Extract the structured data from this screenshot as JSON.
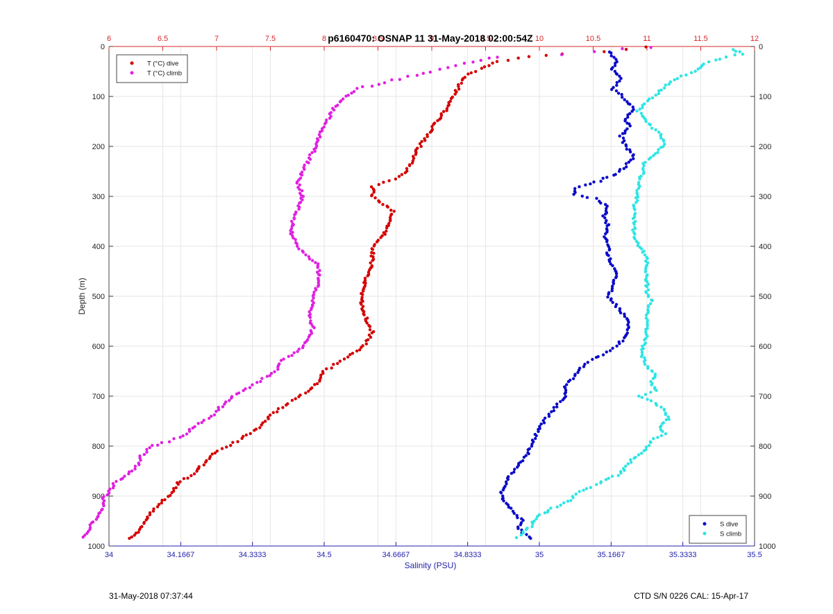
{
  "chart_data": {
    "type": "scatter",
    "title": "p6160470: OSNAP 11 31-May-2018 02:00:54Z",
    "ylabel": "Depth (m)",
    "xlabel_bottom": "Salinity (PSU)",
    "xlabel_top": "",
    "ylim": [
      1000,
      0
    ],
    "ylim_note": "depth increases downward",
    "y_ticks": [
      "0",
      "100",
      "200",
      "300",
      "400",
      "500",
      "600",
      "700",
      "800",
      "900",
      "1000"
    ],
    "x_top_range": [
      6,
      12
    ],
    "x_top_ticks": [
      "6",
      "6.5",
      "7",
      "7.5",
      "8",
      "8.5",
      "9",
      "9.5",
      "10",
      "10.5",
      "11",
      "11.5",
      "12"
    ],
    "x_bottom_range": [
      34,
      35.5
    ],
    "x_bottom_ticks": [
      "34",
      "34.1667",
      "34.3333",
      "34.5",
      "34.6667",
      "34.8333",
      "35",
      "35.1667",
      "35.3333",
      "35.5"
    ],
    "grid": true,
    "legend_temperature": {
      "placement": "top-left"
    },
    "legend_salinity": {
      "placement": "bottom-right"
    },
    "colors": {
      "top_axis": "#d62728",
      "bottom_axis": "#2222aa",
      "grid": "#e6e6e6"
    },
    "series": [
      {
        "name": "T (°C) dive",
        "axis": "top",
        "color": "#d40000",
        "points": [
          [
            11.0,
            2
          ],
          [
            10.6,
            10
          ],
          [
            10.2,
            14
          ],
          [
            9.9,
            20
          ],
          [
            9.6,
            30
          ],
          [
            9.45,
            45
          ],
          [
            9.3,
            60
          ],
          [
            9.25,
            80
          ],
          [
            9.2,
            100
          ],
          [
            9.15,
            120
          ],
          [
            9.05,
            150
          ],
          [
            8.95,
            180
          ],
          [
            8.85,
            210
          ],
          [
            8.8,
            240
          ],
          [
            8.7,
            260
          ],
          [
            8.45,
            280
          ],
          [
            8.45,
            300
          ],
          [
            8.65,
            330
          ],
          [
            8.6,
            350
          ],
          [
            8.55,
            380
          ],
          [
            8.45,
            400
          ],
          [
            8.45,
            430
          ],
          [
            8.4,
            460
          ],
          [
            8.35,
            490
          ],
          [
            8.35,
            520
          ],
          [
            8.4,
            550
          ],
          [
            8.45,
            570
          ],
          [
            8.4,
            590
          ],
          [
            8.3,
            610
          ],
          [
            8.15,
            630
          ],
          [
            8.0,
            650
          ],
          [
            7.95,
            670
          ],
          [
            7.85,
            690
          ],
          [
            7.7,
            710
          ],
          [
            7.55,
            730
          ],
          [
            7.45,
            750
          ],
          [
            7.35,
            770
          ],
          [
            7.2,
            790
          ],
          [
            7.0,
            810
          ],
          [
            6.85,
            840
          ],
          [
            6.8,
            855
          ],
          [
            6.65,
            870
          ],
          [
            6.6,
            890
          ],
          [
            6.5,
            910
          ],
          [
            6.4,
            930
          ],
          [
            6.35,
            945
          ],
          [
            6.3,
            960
          ],
          [
            6.25,
            975
          ],
          [
            6.2,
            985
          ]
        ]
      },
      {
        "name": "T (°C) climb",
        "axis": "top",
        "color": "#e020e0",
        "points": [
          [
            11.05,
            2
          ],
          [
            10.5,
            10
          ],
          [
            10.2,
            15
          ],
          [
            9.6,
            20
          ],
          [
            9.3,
            35
          ],
          [
            9.0,
            50
          ],
          [
            8.7,
            65
          ],
          [
            8.5,
            75
          ],
          [
            8.3,
            85
          ],
          [
            8.2,
            100
          ],
          [
            8.1,
            120
          ],
          [
            8.05,
            140
          ],
          [
            8.0,
            160
          ],
          [
            7.95,
            180
          ],
          [
            7.9,
            210
          ],
          [
            7.85,
            230
          ],
          [
            7.8,
            250
          ],
          [
            7.75,
            270
          ],
          [
            7.8,
            300
          ],
          [
            7.75,
            330
          ],
          [
            7.7,
            350
          ],
          [
            7.7,
            380
          ],
          [
            7.75,
            400
          ],
          [
            7.85,
            420
          ],
          [
            7.95,
            440
          ],
          [
            7.95,
            470
          ],
          [
            7.9,
            500
          ],
          [
            7.9,
            520
          ],
          [
            7.85,
            540
          ],
          [
            7.9,
            560
          ],
          [
            7.85,
            590
          ],
          [
            7.75,
            610
          ],
          [
            7.6,
            630
          ],
          [
            7.55,
            650
          ],
          [
            7.4,
            670
          ],
          [
            7.25,
            690
          ],
          [
            7.15,
            700
          ],
          [
            7.05,
            720
          ],
          [
            6.95,
            740
          ],
          [
            6.8,
            760
          ],
          [
            6.7,
            780
          ],
          [
            6.55,
            790
          ],
          [
            6.4,
            800
          ],
          [
            6.3,
            820
          ],
          [
            6.25,
            845
          ],
          [
            6.15,
            860
          ],
          [
            6.05,
            875
          ],
          [
            6.0,
            890
          ],
          [
            5.95,
            905
          ],
          [
            5.95,
            925
          ],
          [
            5.9,
            940
          ],
          [
            5.85,
            955
          ],
          [
            5.8,
            970
          ],
          [
            5.75,
            982
          ]
        ]
      },
      {
        "name": "S dive",
        "axis": "bottom",
        "color": "#0a0ac8",
        "points": [
          [
            35.16,
            10
          ],
          [
            35.18,
            25
          ],
          [
            35.17,
            45
          ],
          [
            35.19,
            65
          ],
          [
            35.17,
            85
          ],
          [
            35.2,
            105
          ],
          [
            35.22,
            125
          ],
          [
            35.2,
            145
          ],
          [
            35.21,
            160
          ],
          [
            35.19,
            180
          ],
          [
            35.2,
            200
          ],
          [
            35.22,
            220
          ],
          [
            35.2,
            240
          ],
          [
            35.18,
            255
          ],
          [
            35.15,
            265
          ],
          [
            35.12,
            275
          ],
          [
            35.08,
            285
          ],
          [
            35.08,
            295
          ],
          [
            35.13,
            305
          ],
          [
            35.16,
            320
          ],
          [
            35.15,
            340
          ],
          [
            35.16,
            360
          ],
          [
            35.15,
            380
          ],
          [
            35.16,
            400
          ],
          [
            35.16,
            420
          ],
          [
            35.17,
            440
          ],
          [
            35.18,
            460
          ],
          [
            35.17,
            480
          ],
          [
            35.16,
            500
          ],
          [
            35.18,
            520
          ],
          [
            35.2,
            540
          ],
          [
            35.21,
            560
          ],
          [
            35.2,
            580
          ],
          [
            35.18,
            600
          ],
          [
            35.14,
            620
          ],
          [
            35.1,
            640
          ],
          [
            35.08,
            660
          ],
          [
            35.06,
            680
          ],
          [
            35.06,
            700
          ],
          [
            35.04,
            720
          ],
          [
            35.02,
            740
          ],
          [
            35.0,
            760
          ],
          [
            34.99,
            780
          ],
          [
            34.98,
            800
          ],
          [
            34.97,
            820
          ],
          [
            34.95,
            840
          ],
          [
            34.93,
            860
          ],
          [
            34.92,
            880
          ],
          [
            34.91,
            895
          ],
          [
            34.92,
            910
          ],
          [
            34.94,
            930
          ],
          [
            34.96,
            950
          ],
          [
            34.95,
            965
          ],
          [
            34.98,
            985
          ]
        ]
      },
      {
        "name": "S climb",
        "axis": "bottom",
        "color": "#2ee5e5",
        "points": [
          [
            35.45,
            5
          ],
          [
            35.47,
            15
          ],
          [
            35.42,
            25
          ],
          [
            35.38,
            35
          ],
          [
            35.37,
            45
          ],
          [
            35.33,
            60
          ],
          [
            35.3,
            75
          ],
          [
            35.28,
            90
          ],
          [
            35.25,
            110
          ],
          [
            35.23,
            130
          ],
          [
            35.25,
            150
          ],
          [
            35.28,
            175
          ],
          [
            35.29,
            195
          ],
          [
            35.27,
            215
          ],
          [
            35.24,
            235
          ],
          [
            35.24,
            255
          ],
          [
            35.23,
            275
          ],
          [
            35.23,
            300
          ],
          [
            35.22,
            320
          ],
          [
            35.22,
            345
          ],
          [
            35.22,
            365
          ],
          [
            35.22,
            385
          ],
          [
            35.24,
            405
          ],
          [
            35.25,
            430
          ],
          [
            35.25,
            460
          ],
          [
            35.25,
            490
          ],
          [
            35.26,
            510
          ],
          [
            35.25,
            530
          ],
          [
            35.25,
            555
          ],
          [
            35.25,
            580
          ],
          [
            35.24,
            600
          ],
          [
            35.24,
            620
          ],
          [
            35.25,
            640
          ],
          [
            35.27,
            655
          ],
          [
            35.26,
            670
          ],
          [
            35.27,
            690
          ],
          [
            35.23,
            700
          ],
          [
            35.26,
            710
          ],
          [
            35.29,
            725
          ],
          [
            35.3,
            745
          ],
          [
            35.28,
            760
          ],
          [
            35.29,
            775
          ],
          [
            35.26,
            790
          ],
          [
            35.24,
            810
          ],
          [
            35.22,
            825
          ],
          [
            35.2,
            840
          ],
          [
            35.19,
            855
          ],
          [
            35.16,
            865
          ],
          [
            35.14,
            875
          ],
          [
            35.11,
            885
          ],
          [
            35.08,
            900
          ],
          [
            35.06,
            915
          ],
          [
            35.03,
            925
          ],
          [
            35.01,
            935
          ],
          [
            34.99,
            945
          ],
          [
            34.98,
            960
          ],
          [
            34.96,
            975
          ],
          [
            34.95,
            982
          ]
        ]
      }
    ]
  },
  "footer": {
    "left": "31-May-2018 07:37:44",
    "right": "CTD S/N 0226  CAL: 15-Apr-17"
  }
}
